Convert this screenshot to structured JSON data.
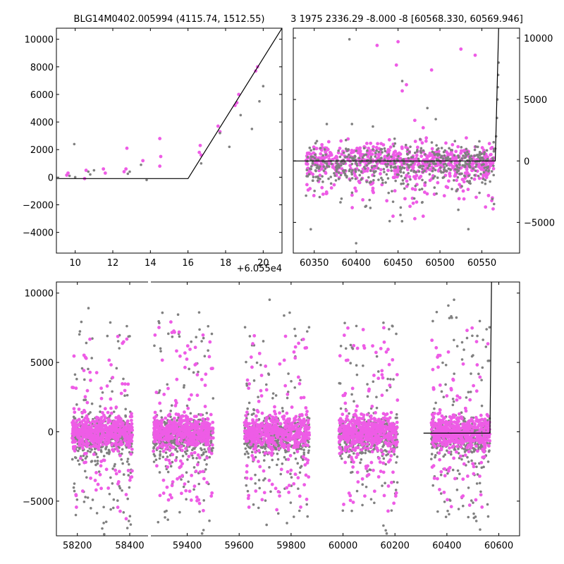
{
  "chart_data": [
    {
      "type": "scatter",
      "title": "BLG14M0402.005994 (4115.74, 1512.55)",
      "x_offset_label": "+6.055e4",
      "xlim": [
        9.0,
        21.0
      ],
      "ylim": [
        -5500,
        10800
      ],
      "xticks": [
        10,
        12,
        14,
        16,
        18,
        20
      ],
      "yticks": [
        -4000,
        -2000,
        0,
        2000,
        4000,
        6000,
        8000,
        10000
      ],
      "series": [
        {
          "color": "#ee5ce6",
          "x": [
            9.55,
            9.62,
            10.5,
            10.58,
            11.5,
            11.6,
            12.6,
            12.7,
            12.75,
            13.6,
            14.5,
            14.55,
            14.5,
            16.6,
            16.65,
            16.7,
            17.6,
            17.7,
            18.5,
            18.6,
            18.7,
            19.6,
            19.7
          ],
          "y": [
            150,
            300,
            -100,
            500,
            600,
            300,
            400,
            600,
            2100,
            1200,
            2800,
            1500,
            800,
            1800,
            2300,
            1600,
            3700,
            3300,
            5200,
            5400,
            6000,
            7700,
            8000
          ]
        },
        {
          "color": "#808080",
          "x": [
            9.7,
            9.95,
            10.0,
            10.7,
            10.8,
            11.0,
            12.8,
            12.9,
            13.5,
            13.8,
            16.7,
            17.7,
            18.2,
            18.8,
            19.4,
            19.8,
            20.0
          ],
          "y": [
            100,
            2400,
            0,
            400,
            200,
            500,
            250,
            400,
            900,
            -200,
            1000,
            3200,
            2200,
            4500,
            3500,
            5500,
            6600
          ]
        },
        {
          "color": "#000000",
          "line": true,
          "x": [
            9.0,
            16.0,
            21.0
          ],
          "y": [
            -100,
            -100,
            10800
          ]
        }
      ]
    },
    {
      "type": "scatter",
      "title": "3 1975 2336.29 -8.000 -8 [60568.330, 60569.946]",
      "xlim": [
        60325,
        60595
      ],
      "ylim": [
        -7500,
        10800
      ],
      "xticks": [
        60350,
        60400,
        60450,
        60500,
        60550
      ],
      "yticks": [
        -5000,
        0,
        5000,
        10000
      ],
      "series": [
        {
          "color": "#ee5ce6",
          "band": true,
          "x_range": [
            60340,
            60565
          ],
          "y_center": 0,
          "y_spread": 1500,
          "n": 700,
          "outliers_x": [
            60425,
            60448,
            60450,
            60455,
            60460,
            60470,
            60480,
            60490,
            60525,
            60542,
            60470,
            60480,
            60444
          ],
          "outliers_y": [
            9400,
            7800,
            9700,
            5700,
            6200,
            3300,
            2700,
            7400,
            9100,
            8600,
            -4700,
            -4500,
            -4500
          ]
        },
        {
          "color": "#808080",
          "band": true,
          "x_range": [
            60340,
            60565
          ],
          "y_center": -300,
          "y_spread": 1700,
          "n": 500,
          "outliers_x": [
            60392,
            60395,
            60420,
            60445,
            60455,
            60485,
            60495,
            60365,
            60400,
            60440
          ],
          "outliers_y": [
            9900,
            3000,
            2800,
            1200,
            6500,
            4300,
            3400,
            3000,
            -6700,
            -4900
          ],
          "curve_x": [
            60566,
            60567,
            60568,
            60568.5,
            60569,
            60569.5,
            60570
          ],
          "curve_y": [
            1000,
            2000,
            3500,
            5000,
            6000,
            7000,
            8000
          ]
        },
        {
          "color": "#000000",
          "line": true,
          "x": [
            60325,
            60566,
            60570
          ],
          "y": [
            0,
            0,
            10800
          ]
        }
      ]
    },
    {
      "type": "scatter",
      "xlim_left": [
        58120,
        58470
      ],
      "xlim_right": [
        59260,
        60680
      ],
      "ylim": [
        -7500,
        10800
      ],
      "xticks_left": [
        58200,
        58400
      ],
      "xticks_right": [
        59400,
        59600,
        59800,
        60000,
        60200,
        60400,
        60600
      ],
      "yticks": [
        -5000,
        0,
        5000,
        10000
      ],
      "seasons": [
        {
          "x_range": [
            58180,
            58410
          ],
          "panel": "left"
        },
        {
          "x_range": [
            59270,
            59500
          ],
          "panel": "right"
        },
        {
          "x_range": [
            59620,
            59870
          ],
          "panel": "right"
        },
        {
          "x_range": [
            59985,
            60210
          ],
          "panel": "right"
        },
        {
          "x_range": [
            60340,
            60565
          ],
          "panel": "right"
        }
      ],
      "series": [
        {
          "color": "#ee5ce6",
          "y_center": 0,
          "y_spread": 1600
        },
        {
          "color": "#808080",
          "y_center": -300,
          "y_spread": 1900
        },
        {
          "color": "#000000",
          "line": true,
          "x": [
            60310,
            60566,
            60572
          ],
          "y": [
            -100,
            -100,
            10800
          ]
        }
      ]
    }
  ]
}
